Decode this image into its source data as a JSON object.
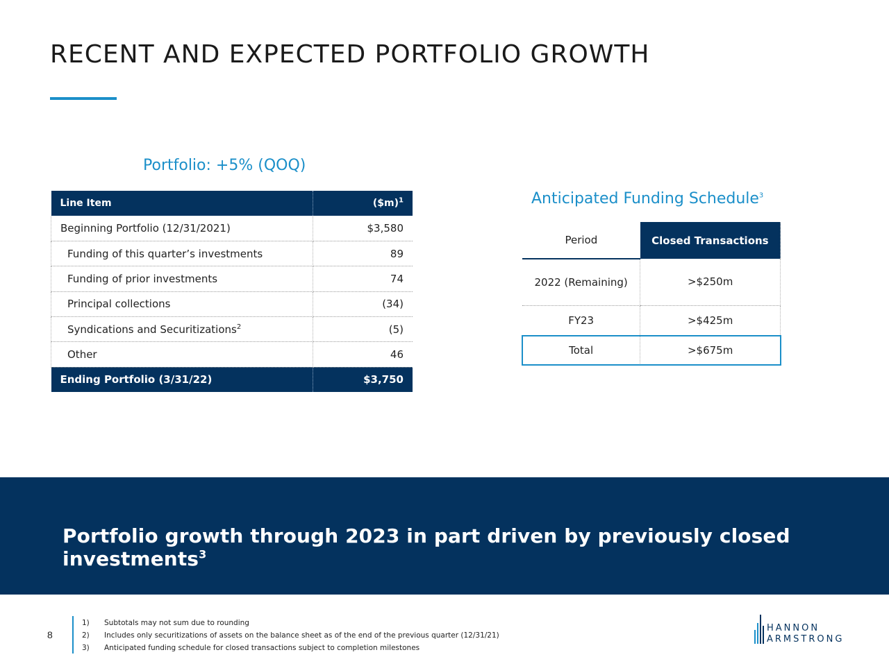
{
  "title": "RECENT AND EXPECTED PORTFOLIO GROWTH",
  "portfolio_heading": "Portfolio: +5% (QOQ)",
  "portfolio_table": {
    "header": {
      "item": "Line Item",
      "value": "($m)",
      "value_sup": "1"
    },
    "rows": [
      {
        "item": "Beginning Portfolio (12/31/2021)",
        "value": "$3,580",
        "sup": ""
      },
      {
        "item": "Funding of this quarter’s investments",
        "value": "89",
        "sup": ""
      },
      {
        "item": "Funding of prior investments",
        "value": "74",
        "sup": ""
      },
      {
        "item": "Principal collections",
        "value": "(34)",
        "sup": ""
      },
      {
        "item": "Syndications and Securitizations",
        "value": "(5)",
        "sup": "2"
      },
      {
        "item": "Other",
        "value": "46",
        "sup": ""
      }
    ],
    "total": {
      "item": "Ending Portfolio (3/31/22)",
      "value": "$3,750"
    }
  },
  "funding_schedule": {
    "heading": "Anticipated Funding Schedule",
    "heading_sup": "3",
    "col_period": "Period",
    "col_closed": "Closed Transactions",
    "rows": [
      {
        "period": "2022 (Remaining)",
        "value": ">$250m"
      },
      {
        "period": "FY23",
        "value": ">$425m"
      },
      {
        "period": "Total",
        "value": ">$675m"
      }
    ]
  },
  "banner": {
    "text": "Portfolio growth through 2023 in part driven by previously closed investments",
    "sup": "3"
  },
  "footer": {
    "page_number": "8",
    "footnotes": [
      {
        "num": "1)",
        "text": "Subtotals may not sum due to rounding"
      },
      {
        "num": "2)",
        "text": "Includes only securitizations of assets on the balance sheet as of the end of the previous quarter (12/31/21)"
      },
      {
        "num": "3)",
        "text": "Anticipated funding schedule for closed transactions subject to completion milestones"
      }
    ],
    "logo_line1": "HANNON",
    "logo_line2": "ARMSTRONG"
  },
  "colors": {
    "navy": "#04325e",
    "accent": "#1b8fc9"
  }
}
